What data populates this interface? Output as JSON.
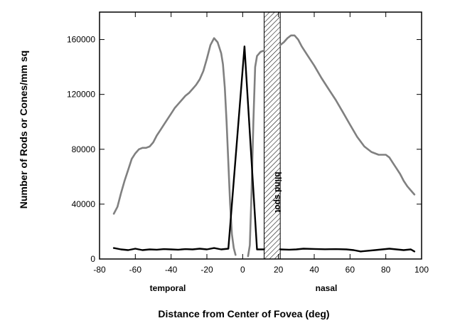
{
  "chart_data": {
    "type": "line",
    "xlabel": "Distance from Center of Fovea (deg)",
    "ylabel": "Number of Rods or Cones/mm sq",
    "xlim": [
      -80,
      100
    ],
    "ylim": [
      0,
      180000
    ],
    "x_ticks": [
      -80,
      -60,
      -40,
      -20,
      0,
      20,
      40,
      60,
      80,
      100
    ],
    "y_ticks": [
      0,
      40000,
      80000,
      120000,
      160000
    ],
    "region_labels": {
      "temporal": "temporal",
      "nasal": "nasal"
    },
    "blind_spot": {
      "label": "blind spot",
      "x_range": [
        12,
        21
      ]
    },
    "colors": {
      "rods": "#808080",
      "cones": "#000000"
    },
    "series": [
      {
        "id": "rods",
        "segments": [
          [
            [
              -72,
              33000
            ],
            [
              -70,
              38000
            ],
            [
              -68,
              48000
            ],
            [
              -66,
              57000
            ],
            [
              -64,
              65000
            ],
            [
              -62,
              73000
            ],
            [
              -60,
              77000
            ],
            [
              -58,
              80000
            ],
            [
              -56,
              81000
            ],
            [
              -54,
              81000
            ],
            [
              -52,
              82000
            ],
            [
              -50,
              85000
            ],
            [
              -48,
              90000
            ],
            [
              -46,
              94000
            ],
            [
              -44,
              98000
            ],
            [
              -42,
              102000
            ],
            [
              -40,
              106000
            ],
            [
              -38,
              110000
            ],
            [
              -36,
              113000
            ],
            [
              -34,
              116000
            ],
            [
              -32,
              119000
            ],
            [
              -30,
              121000
            ],
            [
              -28,
              124000
            ],
            [
              -26,
              127000
            ],
            [
              -24,
              131000
            ],
            [
              -22,
              137000
            ],
            [
              -20,
              146000
            ],
            [
              -18,
              156000
            ],
            [
              -16,
              161000
            ],
            [
              -14,
              158000
            ],
            [
              -12,
              150000
            ],
            [
              -11,
              142000
            ],
            [
              -10,
              125000
            ],
            [
              -9,
              100000
            ],
            [
              -8,
              70000
            ],
            [
              -7,
              40000
            ],
            [
              -6,
              18000
            ],
            [
              -5,
              8000
            ],
            [
              -4,
              3000
            ]
          ],
          [
            [
              3,
              2000
            ],
            [
              4,
              10000
            ],
            [
              5,
              50000
            ],
            [
              6,
              100000
            ],
            [
              7,
              140000
            ],
            [
              8,
              148000
            ],
            [
              10,
              151000
            ],
            [
              12,
              152000
            ]
          ],
          [
            [
              21,
              156000
            ],
            [
              23,
              158000
            ],
            [
              25,
              161000
            ],
            [
              27,
              163000
            ],
            [
              29,
              163000
            ],
            [
              31,
              160000
            ],
            [
              33,
              155000
            ],
            [
              36,
              149000
            ],
            [
              40,
              141000
            ],
            [
              44,
              132000
            ],
            [
              48,
              124000
            ],
            [
              52,
              116000
            ],
            [
              56,
              107000
            ],
            [
              60,
              98000
            ],
            [
              64,
              89000
            ],
            [
              68,
              82000
            ],
            [
              72,
              78000
            ],
            [
              76,
              76000
            ],
            [
              80,
              76000
            ],
            [
              82,
              74000
            ],
            [
              84,
              70000
            ],
            [
              86,
              66000
            ],
            [
              88,
              62000
            ],
            [
              90,
              57000
            ],
            [
              92,
              53000
            ],
            [
              94,
              50000
            ],
            [
              96,
              47000
            ]
          ]
        ]
      },
      {
        "id": "cones",
        "segments": [
          [
            [
              -72,
              8000
            ],
            [
              -68,
              7000
            ],
            [
              -64,
              6500
            ],
            [
              -60,
              7500
            ],
            [
              -56,
              6500
            ],
            [
              -52,
              7000
            ],
            [
              -48,
              6800
            ],
            [
              -44,
              7200
            ],
            [
              -40,
              7000
            ],
            [
              -36,
              6800
            ],
            [
              -32,
              7200
            ],
            [
              -28,
              7000
            ],
            [
              -24,
              7500
            ],
            [
              -20,
              7000
            ],
            [
              -16,
              8000
            ],
            [
              -12,
              7000
            ],
            [
              -8,
              7500
            ],
            [
              1,
              155000
            ],
            [
              8,
              7000
            ],
            [
              12,
              7000
            ]
          ],
          [
            [
              21,
              7000
            ],
            [
              26,
              6800
            ],
            [
              30,
              7000
            ],
            [
              34,
              7500
            ],
            [
              40,
              7300
            ],
            [
              46,
              7100
            ],
            [
              52,
              7200
            ],
            [
              58,
              7000
            ],
            [
              62,
              6500
            ],
            [
              66,
              5500
            ],
            [
              70,
              6000
            ],
            [
              74,
              6500
            ],
            [
              78,
              7000
            ],
            [
              82,
              7500
            ],
            [
              86,
              7000
            ],
            [
              90,
              6500
            ],
            [
              94,
              7000
            ],
            [
              96,
              5500
            ]
          ]
        ]
      }
    ]
  }
}
